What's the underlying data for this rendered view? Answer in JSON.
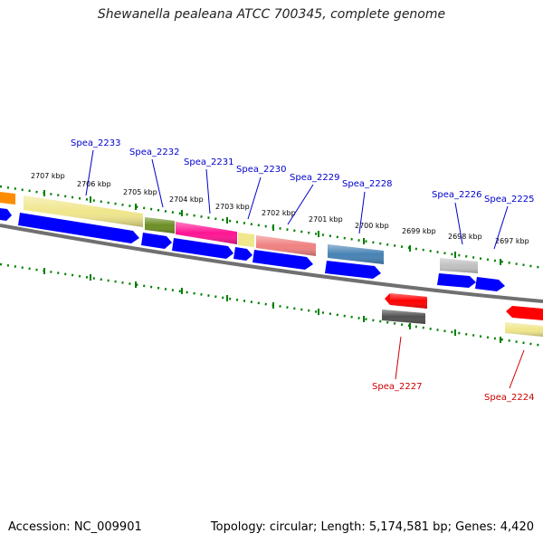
{
  "title": "Shewanella pealeana ATCC 700345, complete genome",
  "footer": {
    "accession": "Accession: NC_009901",
    "topology": "Topology: circular; Length: 5,174,581 bp; Genes: 4,420"
  },
  "kbp_labels": [
    "2707 kbp",
    "2706 kbp",
    "2705 kbp",
    "2704 kbp",
    "2703 kbp",
    "2702 kbp",
    "2701 kbp",
    "2700 kbp",
    "2699 kbp",
    "2698 kbp",
    "2697 kbp"
  ],
  "genes_forward": [
    {
      "name": "Spea_2233",
      "color": "#f0e68c"
    },
    {
      "name": "Spea_2232",
      "color": "#6b8e23"
    },
    {
      "name": "Spea_2231",
      "color": "#ff1493"
    },
    {
      "name": "Spea_2230",
      "color": "#f0e68c"
    },
    {
      "name": "Spea_2229",
      "color": "#f08080"
    },
    {
      "name": "Spea_2228",
      "color": "#4682b4"
    },
    {
      "name": "Spea_2226",
      "color": "#c0c0c0"
    },
    {
      "name": "Spea_2225",
      "color": "#0000ff"
    }
  ],
  "genes_reverse": [
    {
      "name": "Spea_2227",
      "color": "#ff0000"
    },
    {
      "name": "Spea_2224",
      "color": "#ff0000"
    }
  ],
  "colors": {
    "forward_label": "#0000cc",
    "reverse_label": "#cc0000",
    "cds": "#0000ff",
    "tick": "#008000",
    "backbone": "#808080"
  }
}
